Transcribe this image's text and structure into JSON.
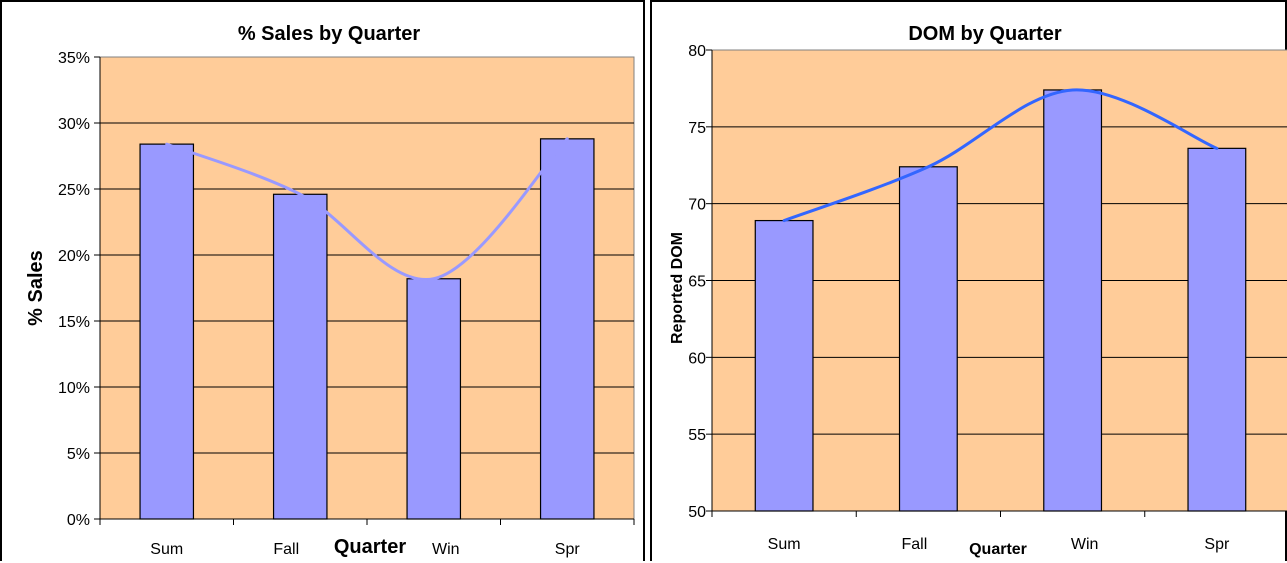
{
  "chart_data": [
    {
      "type": "bar",
      "title": "% Sales by Quarter",
      "xlabel": "Quarter",
      "ylabel": "% Sales",
      "categories": [
        "Sum",
        "Fall",
        "Win",
        "Spr"
      ],
      "values": [
        28.4,
        24.6,
        18.2,
        28.8
      ],
      "yticks": [
        "0%",
        "5%",
        "10%",
        "15%",
        "20%",
        "25%",
        "30%",
        "35%"
      ],
      "ylim": [
        0,
        35
      ],
      "grid": true,
      "trendline": "smooth curve through bar tops",
      "colors": {
        "plot_bg": "#FFCC99",
        "bar": "#9999FF",
        "trend": "#9999FF"
      }
    },
    {
      "type": "bar",
      "title": "DOM by Quarter",
      "xlabel": "Quarter",
      "ylabel": "Reported DOM",
      "categories": [
        "Sum",
        "Fall",
        "Win",
        "Spr"
      ],
      "values": [
        68.9,
        72.4,
        77.4,
        73.6
      ],
      "yticks": [
        "50",
        "55",
        "60",
        "65",
        "70",
        "75",
        "80"
      ],
      "ylim": [
        50,
        80
      ],
      "grid": true,
      "trendline": "smooth curve through bar tops",
      "colors": {
        "plot_bg": "#FFCC99",
        "bar": "#9999FF",
        "trend": "#3366FF"
      }
    }
  ]
}
